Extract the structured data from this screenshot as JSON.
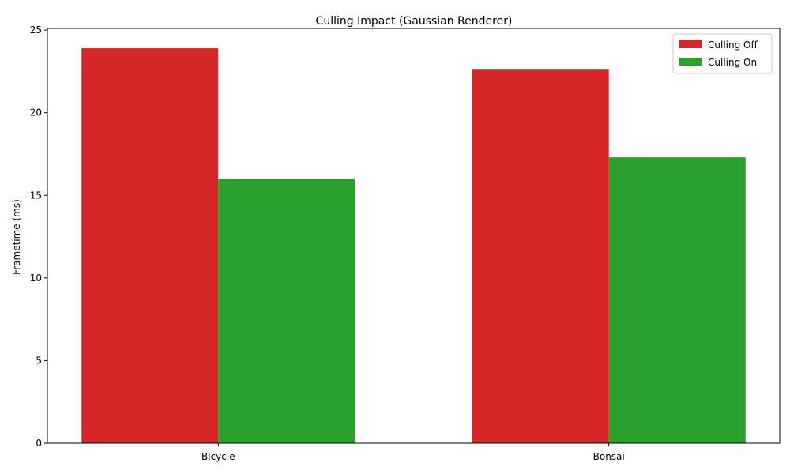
{
  "chart_data": {
    "type": "bar",
    "title": "Culling Impact (Gaussian Renderer)",
    "xlabel": "",
    "ylabel": "Frametime (ms)",
    "categories": [
      "Bicycle",
      "Bonsai"
    ],
    "series": [
      {
        "name": "Culling Off",
        "color": "#d62728",
        "values": [
          23.9,
          22.65
        ]
      },
      {
        "name": "Culling On",
        "color": "#2ca02c",
        "values": [
          16.0,
          17.3
        ]
      }
    ],
    "ylim": [
      0,
      25.1
    ],
    "yticks": [
      0,
      5,
      10,
      15,
      20,
      25
    ],
    "grid": false,
    "legend_position": "top-right"
  }
}
